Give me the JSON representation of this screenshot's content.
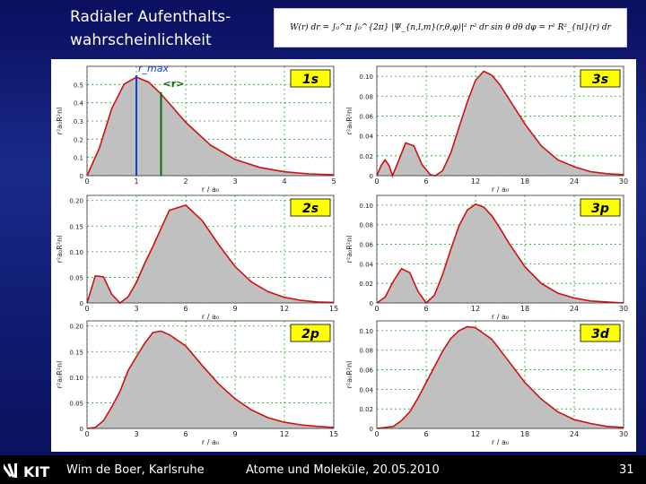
{
  "slide": {
    "title": "Radialer Aufenthalts-wahrscheinlichkeit",
    "formula": "W(r) dr = ∫₀^π ∫₀^{2π} |Ψ_{n,l,m}(r,θ,φ)|² r² dr sin θ dθ dφ = r² R²_{nl}(r) dr",
    "footer_left": "Wim de Boer, Karlsruhe",
    "footer_mid": "Atome und Moleküle, 20.05.2010",
    "page_number": "31",
    "logo_text": "KIT"
  },
  "colors": {
    "fill": "#c0c0c0",
    "curve": "#d01010",
    "grid": "#22aa22",
    "rmax_line": "#1040d0",
    "rexp_line": "#0a6a0a",
    "label_box": "#ffff00"
  },
  "chart_data": [
    {
      "id": "1s",
      "type": "area",
      "label": "1s",
      "xlabel": "r / a₀",
      "ylabel": "r²a₀R²nl",
      "xlim": [
        0,
        5
      ],
      "ylim": [
        0,
        0.6
      ],
      "xticks": [
        0,
        1,
        2,
        3,
        4,
        5
      ],
      "yticks": [
        0,
        0.1,
        0.2,
        0.3,
        0.4,
        0.5
      ],
      "ytick_labels": [
        "0",
        "0.1",
        "0.2",
        "0.3",
        "0.4",
        "0.5"
      ],
      "x": [
        0,
        0.25,
        0.5,
        0.75,
        1,
        1.25,
        1.5,
        2,
        2.5,
        3,
        3.5,
        4,
        4.5,
        5
      ],
      "y": [
        0,
        0.152,
        0.368,
        0.502,
        0.541,
        0.513,
        0.448,
        0.293,
        0.168,
        0.089,
        0.045,
        0.021,
        0.01,
        0.005
      ],
      "annotations": {
        "rmax_label": "r_max",
        "rmax_value": 1,
        "rexp_label": "<r>",
        "rexp_value": 1.5
      }
    },
    {
      "id": "3s",
      "type": "area",
      "label": "3s",
      "xlabel": "r / a₀",
      "ylabel": "r²a₀R²nl",
      "xlim": [
        0,
        30
      ],
      "ylim": [
        0,
        0.11
      ],
      "xticks": [
        0,
        6,
        12,
        18,
        24,
        30
      ],
      "yticks": [
        0,
        0.02,
        0.04,
        0.06,
        0.08,
        0.1
      ],
      "ytick_labels": [
        "0",
        "0.02",
        "0.04",
        "0.06",
        "0.08",
        "0.10"
      ],
      "x": [
        0,
        0.5,
        1,
        1.5,
        1.9,
        2.5,
        3.5,
        4.5,
        5.5,
        6.5,
        7.1,
        8,
        9,
        10,
        11,
        12,
        13,
        14,
        15,
        16,
        18,
        20,
        22,
        24,
        26,
        28,
        30
      ],
      "y": [
        0,
        0.01,
        0.016,
        0.01,
        0.0,
        0.012,
        0.033,
        0.03,
        0.011,
        0.001,
        0.0,
        0.005,
        0.023,
        0.049,
        0.074,
        0.096,
        0.105,
        0.101,
        0.091,
        0.078,
        0.052,
        0.03,
        0.016,
        0.009,
        0.004,
        0.002,
        0.001
      ]
    },
    {
      "id": "2s",
      "type": "area",
      "label": "2s",
      "xlabel": "r / a₀",
      "ylabel": "r²a₀R²nl",
      "xlim": [
        0,
        15
      ],
      "ylim": [
        0,
        0.21
      ],
      "xticks": [
        0,
        3,
        6,
        9,
        12,
        15
      ],
      "yticks": [
        0,
        0.05,
        0.1,
        0.15,
        0.2
      ],
      "ytick_labels": [
        "0",
        "0.05",
        "0.10",
        "0.15",
        "0.20"
      ],
      "x": [
        0,
        0.5,
        1,
        1.5,
        2,
        2.5,
        3,
        3.5,
        4,
        5,
        6,
        7,
        8,
        9,
        10,
        11,
        12,
        13,
        14,
        15
      ],
      "y": [
        0,
        0.053,
        0.051,
        0.017,
        0.0,
        0.012,
        0.04,
        0.077,
        0.11,
        0.181,
        0.191,
        0.161,
        0.114,
        0.071,
        0.041,
        0.022,
        0.011,
        0.005,
        0.002,
        0.001
      ]
    },
    {
      "id": "3p",
      "type": "area",
      "label": "3p",
      "xlabel": "r / a₀",
      "ylabel": "r²a₀R²nl",
      "xlim": [
        0,
        30
      ],
      "ylim": [
        0,
        0.11
      ],
      "xticks": [
        0,
        6,
        12,
        18,
        24,
        30
      ],
      "yticks": [
        0,
        0.02,
        0.04,
        0.06,
        0.08,
        0.1
      ],
      "ytick_labels": [
        "0",
        "0.02",
        "0.04",
        "0.06",
        "0.08",
        "0.10"
      ],
      "x": [
        0,
        1,
        2,
        3,
        4,
        5,
        6,
        7,
        8,
        9,
        10,
        11,
        12,
        13,
        14,
        15,
        16,
        18,
        20,
        22,
        24,
        26,
        28,
        30
      ],
      "y": [
        0,
        0.006,
        0.022,
        0.035,
        0.031,
        0.012,
        0.0,
        0.008,
        0.029,
        0.055,
        0.079,
        0.095,
        0.101,
        0.098,
        0.089,
        0.076,
        0.062,
        0.037,
        0.02,
        0.01,
        0.005,
        0.002,
        0.001,
        0.0
      ]
    },
    {
      "id": "2p",
      "type": "area",
      "label": "2p",
      "xlabel": "r / a₀",
      "ylabel": "r²a₀R²nl",
      "xlim": [
        0,
        15
      ],
      "ylim": [
        0,
        0.21
      ],
      "xticks": [
        0,
        3,
        6,
        9,
        12,
        15
      ],
      "yticks": [
        0,
        0.05,
        0.1,
        0.15,
        0.2
      ],
      "ytick_labels": [
        "0",
        "0.05",
        "0.10",
        "0.15",
        "0.20"
      ],
      "x": [
        0,
        0.5,
        1,
        1.5,
        2,
        2.5,
        3,
        3.5,
        4,
        4.5,
        5,
        6,
        7,
        8,
        9,
        10,
        11,
        12,
        13,
        14,
        15
      ],
      "y": [
        0,
        0.002,
        0.015,
        0.042,
        0.072,
        0.113,
        0.14,
        0.166,
        0.187,
        0.19,
        0.183,
        0.161,
        0.123,
        0.087,
        0.058,
        0.036,
        0.021,
        0.012,
        0.007,
        0.004,
        0.002
      ]
    },
    {
      "id": "3d",
      "type": "area",
      "label": "3d",
      "xlabel": "r / a₀",
      "ylabel": "r²a₀R²nl",
      "xlim": [
        0,
        30
      ],
      "ylim": [
        0,
        0.11
      ],
      "xticks": [
        0,
        6,
        12,
        18,
        24,
        30
      ],
      "yticks": [
        0,
        0.02,
        0.04,
        0.06,
        0.08,
        0.1
      ],
      "ytick_labels": [
        "0",
        "0.02",
        "0.04",
        "0.06",
        "0.08",
        "0.10"
      ],
      "x": [
        0,
        2,
        3,
        4,
        5,
        6,
        7,
        8,
        9,
        10,
        11,
        12,
        14,
        16,
        18,
        20,
        22,
        24,
        26,
        28,
        30
      ],
      "y": [
        0,
        0.002,
        0.008,
        0.017,
        0.031,
        0.047,
        0.063,
        0.079,
        0.092,
        0.1,
        0.104,
        0.103,
        0.091,
        0.069,
        0.047,
        0.03,
        0.017,
        0.009,
        0.005,
        0.002,
        0.001
      ]
    }
  ]
}
